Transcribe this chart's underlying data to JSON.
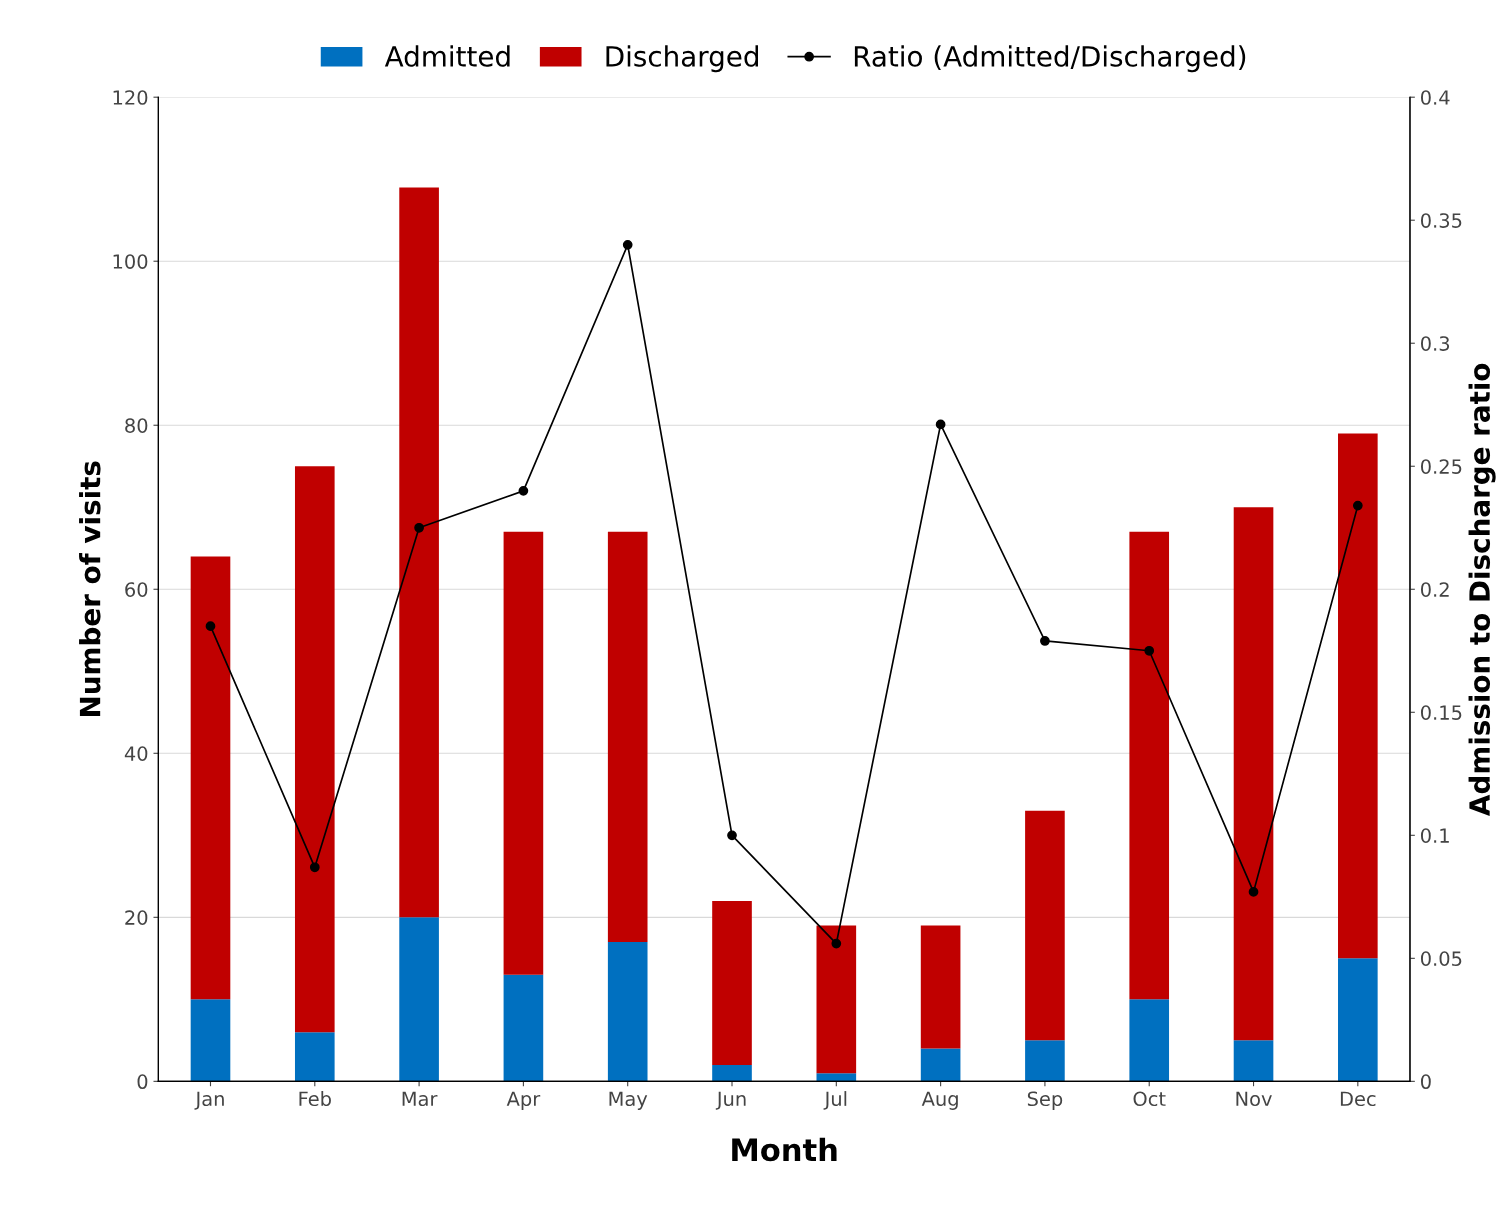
{
  "chart_data": {
    "type": "bar",
    "stacked": true,
    "xlabel": "Month",
    "ylabel": "Number of visits",
    "y2label": "Admission to Discharge ratio",
    "categories": [
      "Jan",
      "Feb",
      "Mar",
      "Apr",
      "May",
      "Jun",
      "Jul",
      "Aug",
      "Sep",
      "Oct",
      "Nov",
      "Dec"
    ],
    "series": [
      {
        "name": "Admitted",
        "color": "#0070c0",
        "values": [
          10,
          6,
          20,
          13,
          17,
          2,
          1,
          4,
          5,
          10,
          5,
          15
        ]
      },
      {
        "name": "Discharged",
        "color": "#c00000",
        "values": [
          54,
          69,
          89,
          54,
          50,
          20,
          18,
          15,
          28,
          57,
          65,
          64
        ]
      },
      {
        "name": "Ratio (Admitted/Discharged)",
        "type": "line",
        "axis": "y2",
        "color": "#000000",
        "marker": "circle",
        "line_style": "solid",
        "values": [
          0.185,
          0.087,
          0.225,
          0.24,
          0.34,
          0.1,
          0.056,
          0.267,
          0.179,
          0.175,
          0.077,
          0.234
        ]
      }
    ],
    "ylim": [
      0,
      120
    ],
    "yticks": [
      0,
      20,
      40,
      60,
      80,
      100,
      120
    ],
    "y2lim": [
      0,
      0.4
    ],
    "y2ticks": [
      0,
      0.05,
      0.1,
      0.15,
      0.2,
      0.25,
      0.3,
      0.35,
      0.4
    ],
    "grid": "y",
    "legend": "top"
  }
}
